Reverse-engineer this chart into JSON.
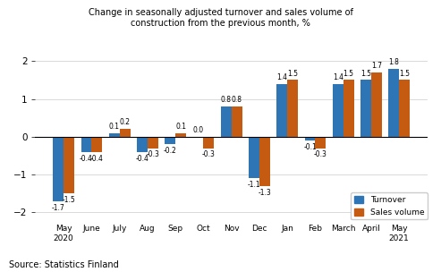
{
  "categories": [
    "May\n2020",
    "June",
    "July",
    "Aug",
    "Sep",
    "Oct",
    "Nov",
    "Dec",
    "Jan",
    "Feb",
    "March",
    "April",
    "May\n2021"
  ],
  "turnover": [
    -1.7,
    -0.4,
    0.1,
    -0.4,
    -0.2,
    0.0,
    0.8,
    -1.1,
    1.4,
    -0.1,
    1.4,
    1.5,
    1.8
  ],
  "sales_volume": [
    -1.5,
    -0.4,
    0.2,
    -0.3,
    0.1,
    -0.3,
    0.8,
    -1.3,
    1.5,
    -0.3,
    1.5,
    1.7,
    1.5
  ],
  "turnover_labels": [
    "-1.7",
    "-0.4",
    "0.1",
    "-0.4",
    "-0.2",
    "0.0",
    "0.8",
    "-1.1",
    "1.4",
    "-0.1",
    "1.4",
    "1.5",
    "1.8"
  ],
  "sales_labels": [
    "-1.5",
    "-0.4",
    "0.2",
    "-0.3",
    "0.1",
    "-0.3",
    "0.8",
    "-1.3",
    "1.5",
    "-0.3",
    "1.5",
    "1.7",
    "1.5"
  ],
  "turnover_color": "#2e75b6",
  "sales_volume_color": "#c55a11",
  "ylim": [
    -2.3,
    2.4
  ],
  "yticks": [
    -2,
    -1,
    0,
    1,
    2
  ],
  "title": "Change in seasonally adjusted turnover and sales volume of\nconstruction from the previous month, %",
  "source": "Source: Statistics Finland",
  "legend_labels": [
    "Turnover",
    "Sales volume"
  ],
  "bar_width": 0.38
}
